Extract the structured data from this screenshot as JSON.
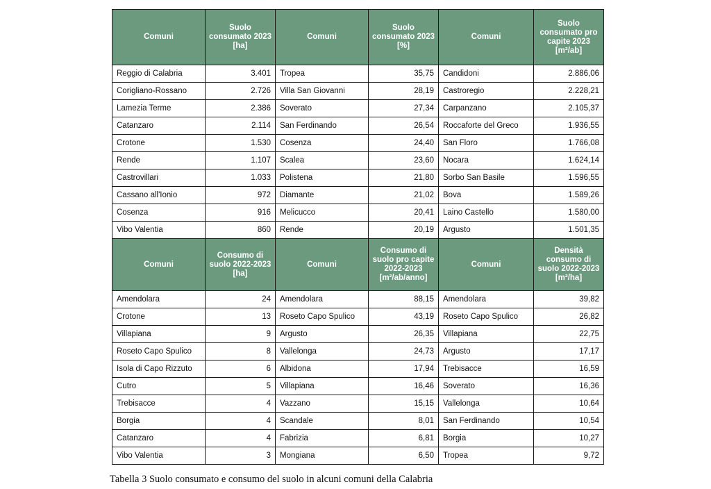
{
  "table1": {
    "headers": [
      {
        "lines": [
          "Comuni"
        ]
      },
      {
        "lines": [
          "Suolo",
          "consumato 2023",
          "[ha]"
        ]
      },
      {
        "lines": [
          "Comuni"
        ]
      },
      {
        "lines": [
          "Suolo",
          "consumato 2023",
          "[%]"
        ]
      },
      {
        "lines": [
          "Comuni"
        ]
      },
      {
        "lines": [
          "Suolo",
          "consumato pro",
          "capite 2023",
          "[m²/ab]"
        ]
      }
    ],
    "rows": [
      [
        "Reggio di Calabria",
        "3.401",
        "Tropea",
        "35,75",
        "Candidoni",
        "2.886,06"
      ],
      [
        "Corigliano-Rossano",
        "2.726",
        "Villa San Giovanni",
        "28,19",
        "Castroregio",
        "2.228,21"
      ],
      [
        "Lamezia Terme",
        "2.386",
        "Soverato",
        "27,34",
        "Carpanzano",
        "2.105,37"
      ],
      [
        "Catanzaro",
        "2.114",
        "San Ferdinando",
        "26,54",
        "Roccaforte del Greco",
        "1.936,55"
      ],
      [
        "Crotone",
        "1.530",
        "Cosenza",
        "24,40",
        "San Floro",
        "1.766,08"
      ],
      [
        "Rende",
        "1.107",
        "Scalea",
        "23,60",
        "Nocara",
        "1.624,14"
      ],
      [
        "Castrovillari",
        "1.033",
        "Polistena",
        "21,80",
        "Sorbo San Basile",
        "1.596,55"
      ],
      [
        "Cassano all'Ionio",
        "972",
        "Diamante",
        "21,02",
        "Bova",
        "1.589,26"
      ],
      [
        "Cosenza",
        "916",
        "Melicucco",
        "20,41",
        "Laino Castello",
        "1.580,00"
      ],
      [
        "Vibo Valentia",
        "860",
        "Rende",
        "20,19",
        "Argusto",
        "1.501,35"
      ]
    ]
  },
  "table2": {
    "headers": [
      {
        "lines": [
          "Comuni"
        ]
      },
      {
        "lines": [
          "Consumo di",
          "suolo 2022-2023",
          "[ha]"
        ]
      },
      {
        "lines": [
          "Comuni"
        ]
      },
      {
        "lines": [
          "Consumo di",
          "suolo pro capite",
          "2022-2023",
          "[m²/ab/anno]"
        ]
      },
      {
        "lines": [
          "Comuni"
        ]
      },
      {
        "lines": [
          "Densità",
          "consumo di",
          "suolo 2022-2023",
          "[m²/ha]"
        ]
      }
    ],
    "rows": [
      [
        "Amendolara",
        "24",
        "Amendolara",
        "88,15",
        "Amendolara",
        "39,82"
      ],
      [
        "Crotone",
        "13",
        "Roseto Capo Spulico",
        "43,19",
        "Roseto Capo Spulico",
        "26,82"
      ],
      [
        "Villapiana",
        "9",
        "Argusto",
        "26,35",
        "Villapiana",
        "22,75"
      ],
      [
        "Roseto Capo Spulico",
        "8",
        "Vallelonga",
        "24,73",
        "Argusto",
        "17,17"
      ],
      [
        "Isola di Capo Rizzuto",
        "6",
        "Albidona",
        "17,94",
        "Trebisacce",
        "16,59"
      ],
      [
        "Cutro",
        "5",
        "Villapiana",
        "16,46",
        "Soverato",
        "16,36"
      ],
      [
        "Trebisacce",
        "4",
        "Vazzano",
        "15,15",
        "Vallelonga",
        "10,64"
      ],
      [
        "Borgia",
        "4",
        "Scandale",
        "8,01",
        "San Ferdinando",
        "10,54"
      ],
      [
        "Catanzaro",
        "4",
        "Fabrizia",
        "6,81",
        "Borgia",
        "10,27"
      ],
      [
        "Vibo Valentia",
        "3",
        "Mongiana",
        "6,50",
        "Tropea",
        "9,72"
      ]
    ]
  },
  "caption": "Tabella 3 Suolo consumato e consumo del suolo in alcuni comuni della Calabria",
  "colors": {
    "header_bg": "#6b9a7f",
    "header_text": "#ffffff",
    "border": "#1a1a1a"
  }
}
